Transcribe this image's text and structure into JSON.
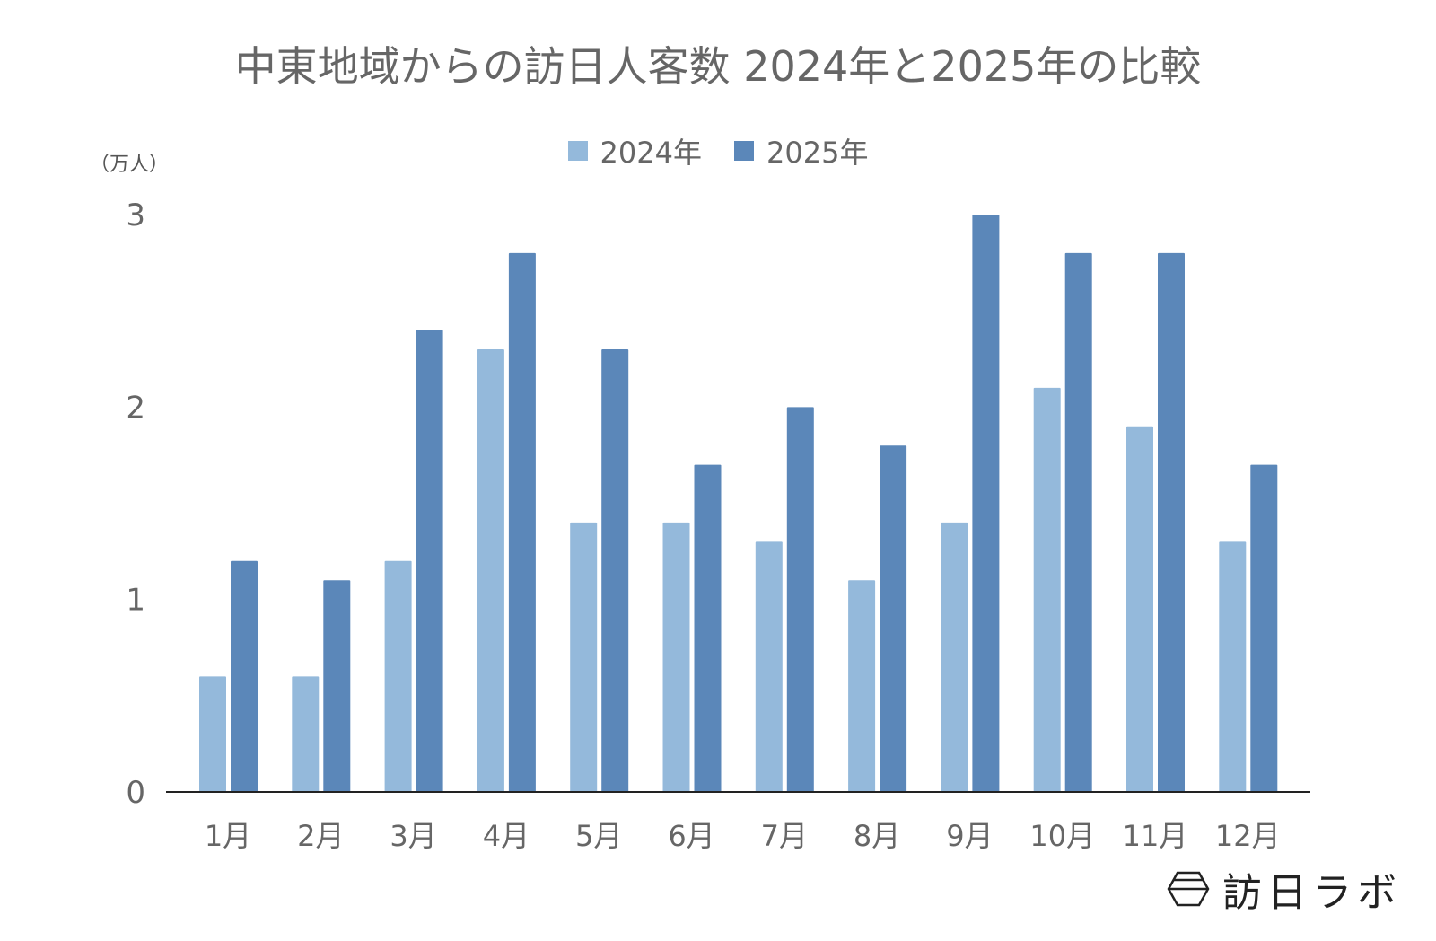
{
  "chart_data": {
    "type": "bar",
    "title": "中東地域からの訪日人客数 2024年と2025年の比較",
    "ylabel": "（万人）",
    "xlabel": "",
    "categories": [
      "1月",
      "2月",
      "3月",
      "4月",
      "5月",
      "6月",
      "7月",
      "8月",
      "9月",
      "10月",
      "11月",
      "12月"
    ],
    "series": [
      {
        "name": "2024年",
        "color": "#94b9db",
        "values": [
          0.6,
          0.6,
          1.2,
          2.3,
          1.4,
          1.4,
          1.3,
          1.1,
          1.4,
          2.1,
          1.9,
          1.3
        ]
      },
      {
        "name": "2025年",
        "color": "#5b87b9",
        "values": [
          1.2,
          1.1,
          2.4,
          2.8,
          2.3,
          1.7,
          2.0,
          1.8,
          3.0,
          2.8,
          2.8,
          1.7
        ]
      }
    ],
    "ylim": [
      0,
      3
    ],
    "yticks": [
      "0",
      "1",
      "2",
      "3"
    ],
    "grid": false,
    "legend": "top-center"
  },
  "logo": {
    "text": "訪日ラボ"
  }
}
